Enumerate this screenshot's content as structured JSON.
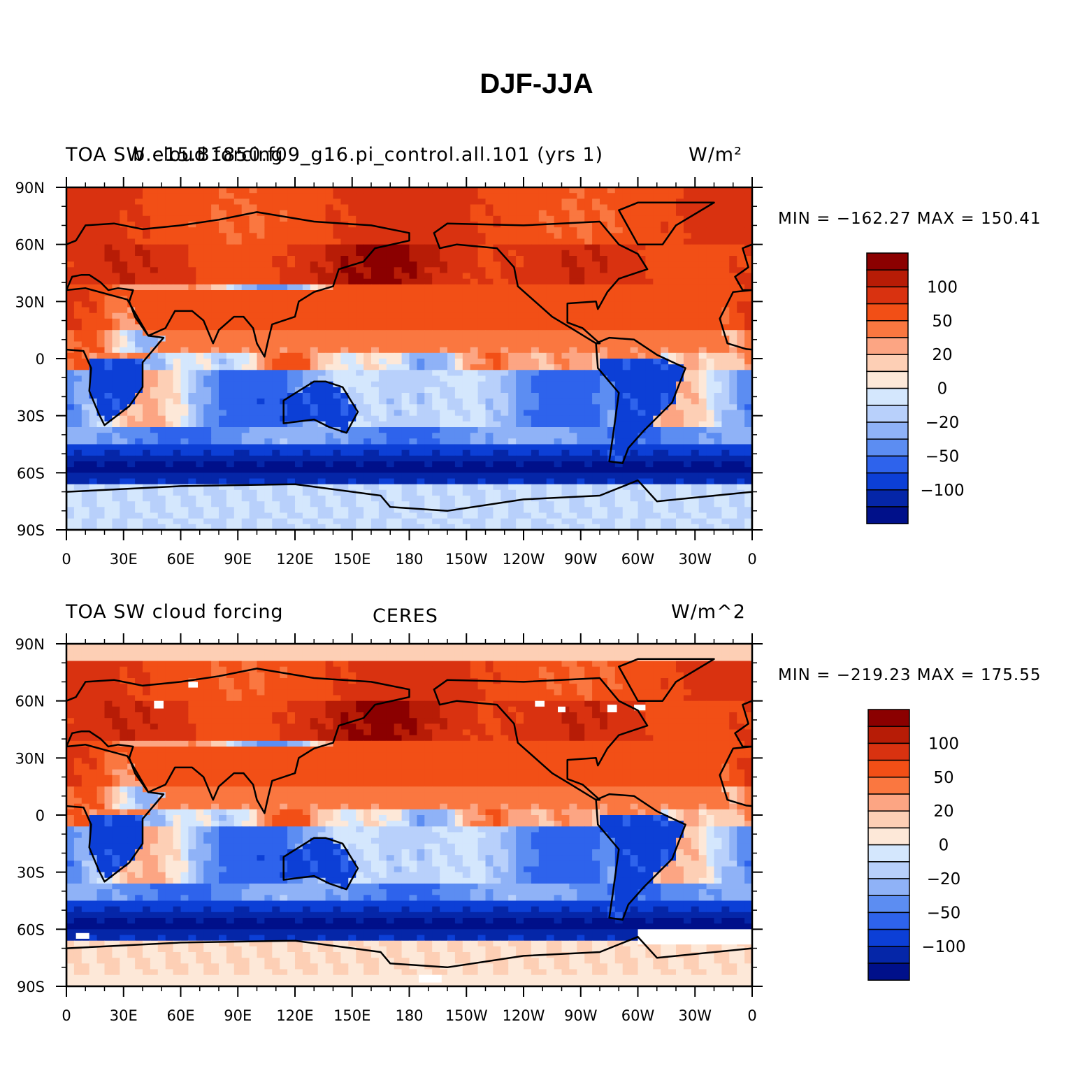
{
  "figure": {
    "title": "DJF-JJA"
  },
  "panels": [
    {
      "left_title_a": "TOA SW cloud forcing",
      "left_title_b": "b.e15.B1850.f09_g16.pi_control.all.101 (yrs 1)",
      "center_title": "",
      "right_title": "W/m²",
      "stats": "MIN = −162.27 MAX = 150.41",
      "min": -162.27,
      "max": 150.41,
      "has_missing_data": false
    },
    {
      "left_title_a": "TOA SW cloud forcing",
      "left_title_b": "",
      "center_title": "CERES",
      "right_title": "W/m^2",
      "stats": "MIN = −219.23 MAX = 175.55",
      "min": -219.23,
      "max": 175.55,
      "has_missing_data": true
    }
  ],
  "axes": {
    "lat_ticks": [
      "90N",
      "60N",
      "30N",
      "0",
      "30S",
      "60S",
      "90S"
    ],
    "lat_values": [
      90,
      60,
      30,
      0,
      -30,
      -60,
      -90
    ],
    "lon_ticks": [
      "0",
      "30E",
      "60E",
      "90E",
      "120E",
      "150E",
      "180",
      "150W",
      "120W",
      "90W",
      "60W",
      "30W",
      "0"
    ],
    "lon_values": [
      0,
      30,
      60,
      90,
      120,
      150,
      180,
      210,
      240,
      270,
      300,
      330,
      360
    ]
  },
  "colorbar": {
    "labels": [
      "100",
      "50",
      "20",
      "0",
      "−20",
      "−50",
      "−100"
    ],
    "colors": [
      "#8b0000",
      "#b71c06",
      "#d93210",
      "#f24f16",
      "#fa7740",
      "#fca583",
      "#fdcfb5",
      "#fde8d8",
      "#d4e7fd",
      "#b8d0fb",
      "#8fb2f7",
      "#5c8df2",
      "#2e63ec",
      "#0c3fd6",
      "#0526a8",
      "#00108a"
    ],
    "levels": [
      120,
      100,
      75,
      50,
      35,
      20,
      10,
      0,
      -10,
      -20,
      -35,
      -50,
      -75,
      -100,
      -120
    ]
  },
  "colors": {
    "land_outline": "#000000",
    "missing_data": "#ffffff"
  },
  "chart_data": {
    "type": "heatmap",
    "title": "DJF-JJA",
    "x_range": [
      0,
      360
    ],
    "y_range": [
      -90,
      90
    ],
    "units": "W/m^2",
    "fields": [
      {
        "name": "b.e15.B1850.f09_g16.pi_control.all.101 (yrs 1)",
        "min": -162.27,
        "max": 150.41
      },
      {
        "name": "CERES",
        "min": -219.23,
        "max": 175.55
      }
    ]
  }
}
